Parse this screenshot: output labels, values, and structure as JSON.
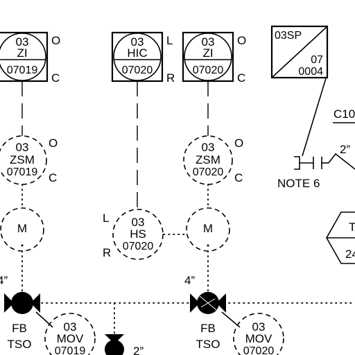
{
  "colors": {
    "ink": "#000000",
    "background": "#ffffff"
  },
  "indicators": [
    {
      "tag1": "03",
      "tag2": "ZI",
      "num": "07019",
      "top_side": "O",
      "bottom_side": "C"
    },
    {
      "tag1": "03",
      "tag2": "HIC",
      "num": "07020",
      "top_side": "L",
      "bottom_side": "R"
    },
    {
      "tag1": "03",
      "tag2": "ZI",
      "num": "07020",
      "top_side": "O",
      "bottom_side": "C"
    }
  ],
  "setpoint": {
    "top": "03SP",
    "mid": "07",
    "bottom": "0004"
  },
  "switches": [
    {
      "tag1": "03",
      "tag2": "ZSM",
      "num": "07019",
      "top_side": "O",
      "bottom_side": "C"
    },
    {
      "tag1": "03",
      "tag2": "ZSM",
      "num": "07020",
      "top_side": "O",
      "bottom_side": "C"
    }
  ],
  "hand_switch": {
    "tag1": "03",
    "tag2": "HS",
    "num": "07020",
    "top_side": "L",
    "bottom_side": "R"
  },
  "motors": [
    {
      "label": "M"
    },
    {
      "label": "M"
    }
  ],
  "valve_sizes": {
    "left": "4”",
    "right": "4”",
    "small": "2”",
    "top_right": "2”"
  },
  "valves": [
    {
      "fb": "FB",
      "tso": "TSO",
      "mov1": "03",
      "mov2": "MOV",
      "num": "07019"
    },
    {
      "fb": "FB",
      "tso": "TSO",
      "mov1": "03",
      "mov2": "MOV",
      "num": "07020"
    }
  ],
  "note": "NOTE 6",
  "partial": {
    "c_label": "C10",
    "hex_top": "T",
    "hex_bottom": "24"
  }
}
